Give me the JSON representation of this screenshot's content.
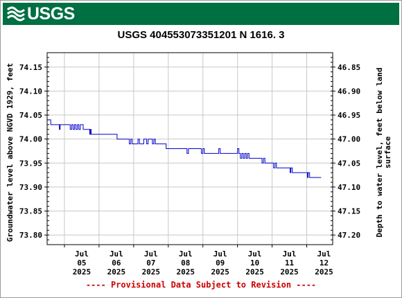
{
  "header": {
    "logo_text": "USGS"
  },
  "chart_data": {
    "type": "line",
    "title": "USGS 404553073351201 N  1616. 3",
    "ylabel": "Groundwater level above NGVD 1929, feet",
    "ylabel_right_lines": [
      "Depth to water level, feet below land",
      "surface"
    ],
    "ylim": [
      73.78,
      74.18
    ],
    "yticks": [
      "74.15",
      "74.10",
      "74.05",
      "74.00",
      "73.95",
      "73.90",
      "73.85",
      "73.80"
    ],
    "yticks_right": [
      "46.85",
      "46.90",
      "46.95",
      "47.00",
      "47.05",
      "47.10",
      "47.15",
      "47.20"
    ],
    "right_axis_offset": 121.0,
    "xlim": [
      "2025-07-04T12:00",
      "2025-07-12T18:00"
    ],
    "xticks": [
      {
        "date": "2025-07-05",
        "label": [
          "Jul",
          "05",
          "2025"
        ]
      },
      {
        "date": "2025-07-06",
        "label": [
          "Jul",
          "06",
          "2025"
        ]
      },
      {
        "date": "2025-07-07",
        "label": [
          "Jul",
          "07",
          "2025"
        ]
      },
      {
        "date": "2025-07-08",
        "label": [
          "Jul",
          "08",
          "2025"
        ]
      },
      {
        "date": "2025-07-09",
        "label": [
          "Jul",
          "09",
          "2025"
        ]
      },
      {
        "date": "2025-07-10",
        "label": [
          "Jul",
          "10",
          "2025"
        ]
      },
      {
        "date": "2025-07-11",
        "label": [
          "Jul",
          "11",
          "2025"
        ]
      },
      {
        "date": "2025-07-12",
        "label": [
          "Jul",
          "12",
          "2025"
        ]
      }
    ],
    "grid": true,
    "series": [
      {
        "color": "#0000cc",
        "points": [
          [
            "2025-07-04T12:00",
            74.04
          ],
          [
            "2025-07-04T14:00",
            74.04
          ],
          [
            "2025-07-04T14:30",
            74.03
          ],
          [
            "2025-07-04T20:00",
            74.03
          ],
          [
            "2025-07-04T20:30",
            74.02
          ],
          [
            "2025-07-04T21:00",
            74.03
          ],
          [
            "2025-07-05T03:00",
            74.03
          ],
          [
            "2025-07-05T04:00",
            74.02
          ],
          [
            "2025-07-05T05:00",
            74.03
          ],
          [
            "2025-07-05T06:00",
            74.02
          ],
          [
            "2025-07-05T07:00",
            74.03
          ],
          [
            "2025-07-05T08:00",
            74.02
          ],
          [
            "2025-07-05T09:00",
            74.03
          ],
          [
            "2025-07-05T10:00",
            74.02
          ],
          [
            "2025-07-05T11:00",
            74.03
          ],
          [
            "2025-07-05T12:00",
            74.03
          ],
          [
            "2025-07-05T13:00",
            74.02
          ],
          [
            "2025-07-05T17:00",
            74.02
          ],
          [
            "2025-07-05T17:30",
            74.01
          ],
          [
            "2025-07-05T18:00",
            74.02
          ],
          [
            "2025-07-05T18:30",
            74.01
          ],
          [
            "2025-07-06T12:00",
            74.01
          ],
          [
            "2025-07-06T12:30",
            74.0
          ],
          [
            "2025-07-06T20:00",
            74.0
          ],
          [
            "2025-07-06T21:00",
            73.99
          ],
          [
            "2025-07-06T22:00",
            74.0
          ],
          [
            "2025-07-06T23:00",
            73.99
          ],
          [
            "2025-07-07T02:00",
            73.99
          ],
          [
            "2025-07-07T03:00",
            74.0
          ],
          [
            "2025-07-07T04:00",
            73.99
          ],
          [
            "2025-07-07T06:00",
            73.99
          ],
          [
            "2025-07-07T07:00",
            74.0
          ],
          [
            "2025-07-07T08:00",
            74.0
          ],
          [
            "2025-07-07T09:00",
            73.99
          ],
          [
            "2025-07-07T10:00",
            74.0
          ],
          [
            "2025-07-07T12:00",
            74.0
          ],
          [
            "2025-07-07T13:00",
            73.99
          ],
          [
            "2025-07-07T14:00",
            74.0
          ],
          [
            "2025-07-07T15:00",
            73.99
          ],
          [
            "2025-07-07T22:00",
            73.99
          ],
          [
            "2025-07-07T22:30",
            73.98
          ],
          [
            "2025-07-08T12:00",
            73.98
          ],
          [
            "2025-07-08T13:00",
            73.97
          ],
          [
            "2025-07-08T14:00",
            73.98
          ],
          [
            "2025-07-08T22:00",
            73.98
          ],
          [
            "2025-07-08T23:00",
            73.97
          ],
          [
            "2025-07-09T00:00",
            73.98
          ],
          [
            "2025-07-09T01:00",
            73.97
          ],
          [
            "2025-07-09T10:00",
            73.97
          ],
          [
            "2025-07-09T11:00",
            73.98
          ],
          [
            "2025-07-09T12:00",
            73.97
          ],
          [
            "2025-07-09T23:00",
            73.97
          ],
          [
            "2025-07-10T00:00",
            73.98
          ],
          [
            "2025-07-10T01:00",
            73.97
          ],
          [
            "2025-07-10T02:00",
            73.96
          ],
          [
            "2025-07-10T03:00",
            73.97
          ],
          [
            "2025-07-10T04:00",
            73.96
          ],
          [
            "2025-07-10T05:00",
            73.97
          ],
          [
            "2025-07-10T06:00",
            73.96
          ],
          [
            "2025-07-10T07:00",
            73.97
          ],
          [
            "2025-07-10T08:00",
            73.96
          ],
          [
            "2025-07-10T16:00",
            73.96
          ],
          [
            "2025-07-10T17:00",
            73.95
          ],
          [
            "2025-07-10T18:00",
            73.96
          ],
          [
            "2025-07-10T19:00",
            73.95
          ],
          [
            "2025-07-11T00:00",
            73.95
          ],
          [
            "2025-07-11T01:00",
            73.94
          ],
          [
            "2025-07-11T02:00",
            73.95
          ],
          [
            "2025-07-11T03:00",
            73.94
          ],
          [
            "2025-07-11T12:00",
            73.94
          ],
          [
            "2025-07-11T12:30",
            73.93
          ],
          [
            "2025-07-11T13:00",
            73.94
          ],
          [
            "2025-07-11T14:00",
            73.93
          ],
          [
            "2025-07-12T00:00",
            73.93
          ],
          [
            "2025-07-12T00:30",
            73.92
          ],
          [
            "2025-07-12T01:00",
            73.93
          ],
          [
            "2025-07-12T02:00",
            73.92
          ],
          [
            "2025-07-12T10:00",
            73.92
          ]
        ]
      }
    ]
  },
  "footer_text": "---- Provisional Data Subject to Revision ----"
}
